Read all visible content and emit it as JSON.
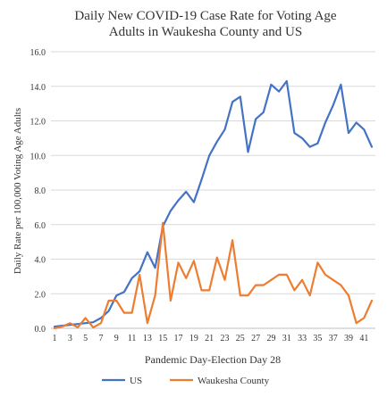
{
  "chart_data": {
    "type": "line",
    "title_line1": "Daily New COVID-19 Case Rate for Voting Age",
    "title_line2": "Adults in Waukesha County and US",
    "xlabel": "Pandemic Day-Election Day 28",
    "ylabel": "Daily Rate per 100,000 Voting Age Adults",
    "ylim": [
      0,
      16
    ],
    "xlim": [
      1,
      42
    ],
    "y_ticks": [
      "0.0",
      "2.0",
      "4.0",
      "6.0",
      "8.0",
      "10.0",
      "12.0",
      "14.0",
      "16.0"
    ],
    "x_ticks": [
      "1",
      "3",
      "5",
      "7",
      "9",
      "11",
      "13",
      "15",
      "17",
      "19",
      "21",
      "23",
      "25",
      "27",
      "29",
      "31",
      "33",
      "35",
      "37",
      "39",
      "41"
    ],
    "grid": "horizontal",
    "legend_position": "bottom",
    "x": [
      1,
      2,
      3,
      4,
      5,
      6,
      7,
      8,
      9,
      10,
      11,
      12,
      13,
      14,
      15,
      16,
      17,
      18,
      19,
      20,
      21,
      22,
      23,
      24,
      25,
      26,
      27,
      28,
      29,
      30,
      31,
      32,
      33,
      34,
      35,
      36,
      37,
      38,
      39,
      40,
      41,
      42
    ],
    "series": [
      {
        "name": "US",
        "color": "#4472C4",
        "values": [
          0.1,
          0.15,
          0.2,
          0.25,
          0.3,
          0.35,
          0.6,
          1.0,
          1.9,
          2.1,
          2.9,
          3.3,
          4.4,
          3.5,
          5.9,
          6.8,
          7.4,
          7.9,
          7.3,
          8.6,
          10.0,
          10.8,
          11.5,
          13.1,
          13.4,
          10.2,
          12.1,
          12.5,
          14.1,
          13.7,
          14.3,
          11.3,
          11.0,
          10.5,
          10.7,
          11.9,
          12.9,
          14.1,
          11.3,
          11.9,
          11.5,
          10.5
        ]
      },
      {
        "name": "Waukesha County",
        "color": "#ED7D31",
        "values": [
          0.0,
          0.1,
          0.3,
          0.05,
          0.6,
          0.05,
          0.3,
          1.6,
          1.6,
          0.9,
          0.9,
          3.1,
          0.3,
          1.9,
          6.1,
          1.6,
          3.8,
          2.9,
          3.9,
          2.2,
          2.2,
          4.1,
          2.8,
          5.1,
          1.9,
          1.9,
          2.5,
          2.5,
          2.8,
          3.1,
          3.1,
          2.2,
          2.8,
          1.9,
          3.8,
          3.1,
          2.8,
          2.5,
          1.9,
          0.3,
          0.6,
          1.6
        ]
      }
    ]
  }
}
